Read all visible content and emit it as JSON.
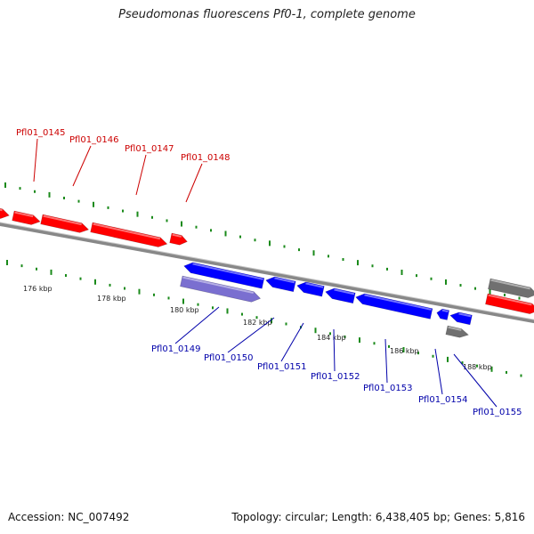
{
  "title": "Pseudomonas fluorescens Pf0-1, complete genome",
  "footer": {
    "accession": "Accession: NC_007492",
    "summary": "Topology: circular; Length: 6,438,405 bp; Genes: 5,816"
  },
  "colors": {
    "forward_gene": "#ff0000",
    "reverse_gene": "#0000ff",
    "pseudo_forward": "#707070",
    "selected_reverse": "#7a6fd0",
    "backbone": "#888888",
    "tick": "#1a8a1a",
    "forward_label": "#cc0000",
    "reverse_label": "#0000aa"
  },
  "scale": {
    "ticks": [
      "176 kbp",
      "178 kbp",
      "180 kbp",
      "182 kbp",
      "184 kbp",
      "186 kbp",
      "188 kbp"
    ]
  },
  "forward_genes": [
    "Pfl01_0145",
    "Pfl01_0146",
    "Pfl01_0147",
    "Pfl01_0148"
  ],
  "reverse_genes": [
    "Pfl01_0149",
    "Pfl01_0150",
    "Pfl01_0151",
    "Pfl01_0152",
    "Pfl01_0153",
    "Pfl01_0154",
    "Pfl01_0155"
  ]
}
